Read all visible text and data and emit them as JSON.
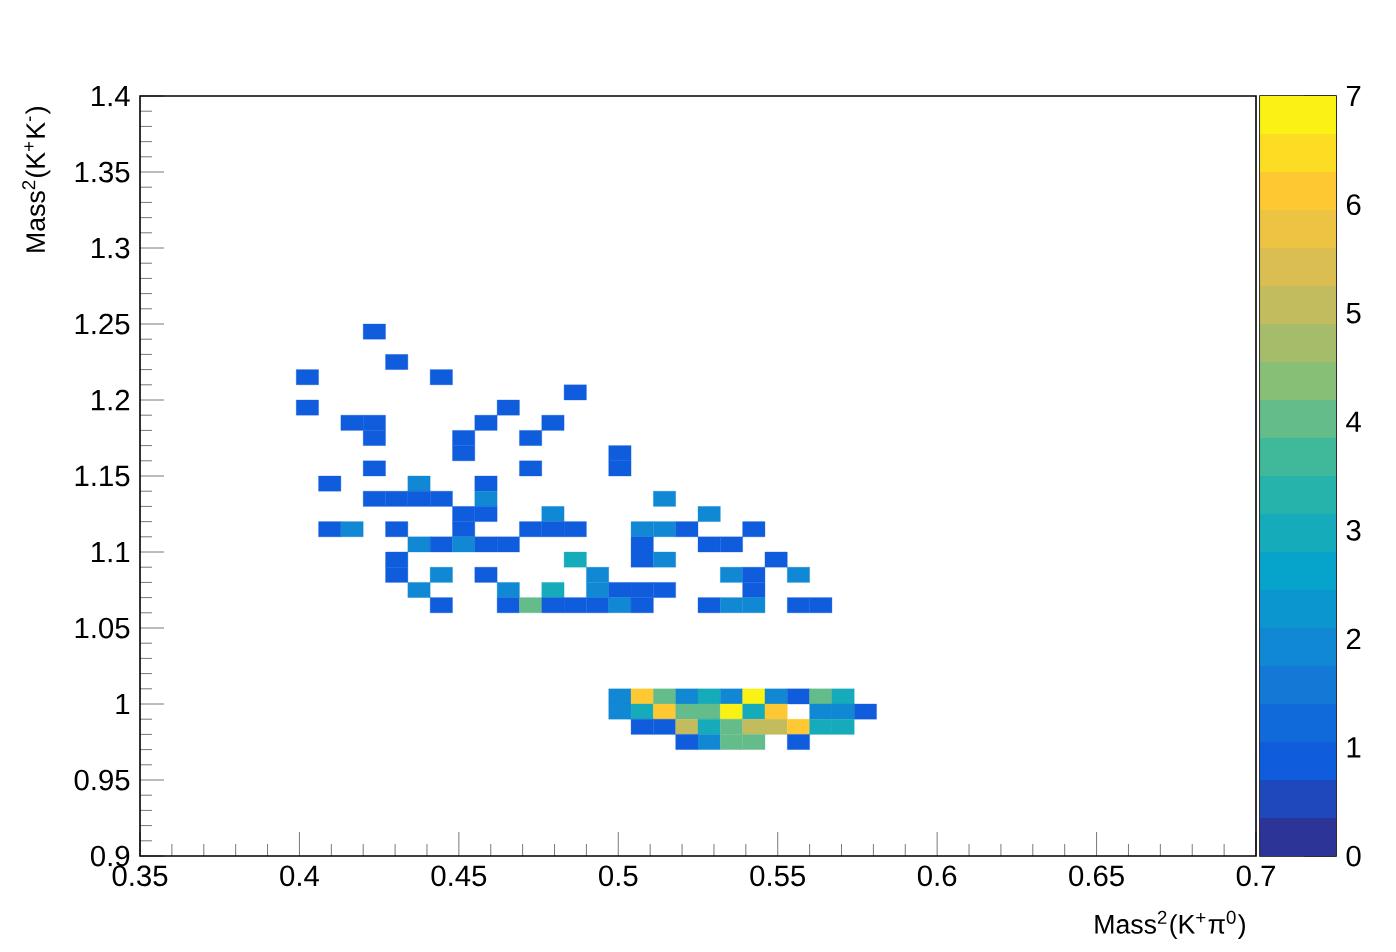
{
  "chart_data": {
    "type": "scatter",
    "marker": "square",
    "xlabel": "Mass$^{2}$(K$^{+}$π$^{0}$)",
    "ylabel": "Mass$^{2}$(K$^{+}$K$^{-}$)",
    "xlim": [
      0.35,
      0.7
    ],
    "ylim": [
      0.9,
      1.4
    ],
    "xticks": [
      0.35,
      0.4,
      0.45,
      0.5,
      0.55,
      0.6,
      0.65,
      0.7
    ],
    "yticks": [
      0.9,
      0.95,
      1,
      1.05,
      1.1,
      1.15,
      1.2,
      1.25,
      1.3,
      1.35,
      1.4
    ],
    "clim": [
      0,
      7
    ],
    "cticks": [
      0,
      1,
      2,
      3,
      4,
      5,
      6,
      7
    ],
    "series": [
      {
        "x": [
          0.4235,
          0.4305,
          0.4025,
          0.4445,
          0.4865,
          0.4025,
          0.4655,
          0.4165,
          0.4235,
          0.4585,
          0.4795,
          0.4235,
          0.4515,
          0.4725,
          0.4515,
          0.5005,
          0.4235,
          0.4725,
          0.5005,
          0.4095,
          0.4375,
          0.4585,
          0.4235,
          0.4305,
          0.4375,
          0.4445,
          0.4585,
          0.5145,
          0.4515,
          0.4585,
          0.4795,
          0.5285,
          0.4095,
          0.4165,
          0.4305,
          0.4515,
          0.4725,
          0.4795,
          0.4865,
          0.5075,
          0.5145,
          0.5215,
          0.5425,
          0.4375,
          0.4445,
          0.4515,
          0.4585,
          0.4655,
          0.5075,
          0.5285,
          0.5355,
          0.4305,
          0.4865,
          0.5075,
          0.5145,
          0.5495,
          0.4305,
          0.4445,
          0.4585,
          0.4935,
          0.5355,
          0.5425,
          0.5565,
          0.4375,
          0.4655,
          0.4795,
          0.4935,
          0.5005,
          0.5075,
          0.5145,
          0.5425,
          0.4445,
          0.4655,
          0.4725,
          0.4795,
          0.4865,
          0.4935,
          0.5005,
          0.5075,
          0.5285,
          0.5355,
          0.5425,
          0.5565,
          0.5635,
          0.5005,
          0.5075,
          0.5145,
          0.5215,
          0.5285,
          0.5355,
          0.5425,
          0.5495,
          0.5565,
          0.5635,
          0.5705,
          0.5005,
          0.5075,
          0.5145,
          0.5215,
          0.5285,
          0.5355,
          0.5425,
          0.5495,
          0.5635,
          0.5705,
          0.5775,
          0.5075,
          0.5145,
          0.5215,
          0.5285,
          0.5355,
          0.5425,
          0.5495,
          0.5565,
          0.5635,
          0.5705,
          0.5215,
          0.5285,
          0.5355,
          0.5425,
          0.5565
        ],
        "values": [
          1.245,
          1.225,
          1.215,
          1.215,
          1.205,
          1.195,
          1.195,
          1.185,
          1.185,
          1.185,
          1.185,
          1.175,
          1.175,
          1.175,
          1.165,
          1.165,
          1.155,
          1.155,
          1.155,
          1.145,
          1.145,
          1.145,
          1.135,
          1.135,
          1.135,
          1.135,
          1.135,
          1.135,
          1.125,
          1.125,
          1.125,
          1.125,
          1.115,
          1.115,
          1.115,
          1.115,
          1.115,
          1.115,
          1.115,
          1.115,
          1.115,
          1.115,
          1.115,
          1.105,
          1.105,
          1.105,
          1.105,
          1.105,
          1.105,
          1.105,
          1.105,
          1.095,
          1.095,
          1.095,
          1.095,
          1.095,
          1.085,
          1.085,
          1.085,
          1.085,
          1.085,
          1.085,
          1.085,
          1.075,
          1.075,
          1.075,
          1.075,
          1.075,
          1.075,
          1.075,
          1.075,
          1.065,
          1.065,
          1.065,
          1.065,
          1.065,
          1.065,
          1.065,
          1.065,
          1.065,
          1.065,
          1.065,
          1.065,
          1.065,
          1.005,
          1.005,
          1.005,
          1.005,
          1.005,
          1.005,
          1.005,
          1.005,
          1.005,
          1.005,
          1.005,
          0.995,
          0.995,
          0.995,
          0.995,
          0.995,
          0.995,
          0.995,
          0.995,
          0.995,
          0.995,
          0.995,
          0.985,
          0.985,
          0.985,
          0.985,
          0.985,
          0.985,
          0.985,
          0.985,
          0.985,
          0.985,
          0.975,
          0.975,
          0.975,
          0.975,
          0.975
        ],
        "cvalues": [
          1,
          1,
          1,
          1,
          1,
          1,
          1,
          1,
          1,
          1,
          1,
          1,
          1,
          1,
          1,
          1,
          1,
          1,
          1,
          1,
          2,
          1,
          1,
          1,
          1,
          1,
          2,
          2,
          1,
          1,
          2,
          2,
          1,
          2,
          1,
          1,
          1,
          1,
          1,
          2,
          2,
          1,
          1,
          2,
          1,
          2,
          1,
          1,
          1,
          1,
          1,
          1,
          3,
          1,
          2,
          1,
          1,
          2,
          1,
          2,
          2,
          1,
          2,
          2,
          2,
          3,
          2,
          1,
          1,
          1,
          1,
          1,
          1,
          4,
          1,
          1,
          1,
          2,
          1,
          1,
          2,
          2,
          1,
          1,
          2,
          6,
          4,
          2,
          3,
          2,
          7,
          2,
          1,
          4,
          3,
          2,
          3,
          6,
          4,
          4,
          7,
          3,
          6,
          2,
          2,
          1,
          1,
          1,
          5,
          3,
          4,
          5,
          5,
          6,
          3,
          3,
          1,
          2,
          4,
          4,
          1
        ]
      }
    ]
  }
}
